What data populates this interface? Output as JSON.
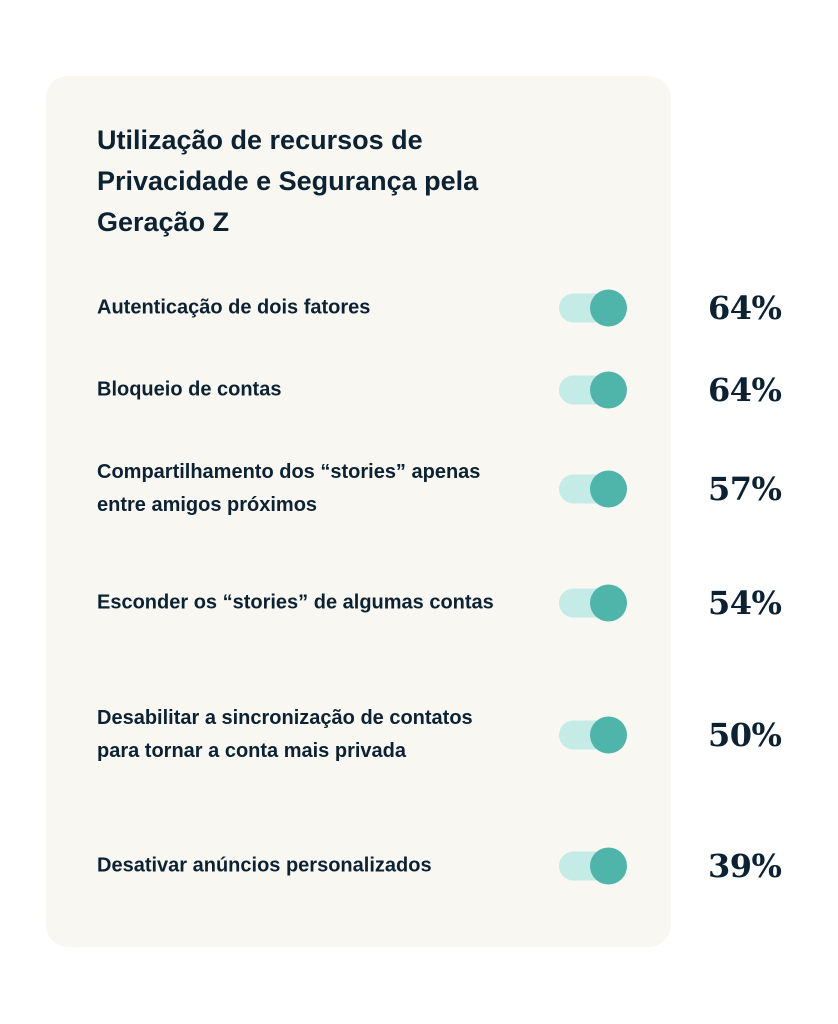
{
  "title": "Utilização de recursos de Privacidade e Segurança pela Geração Z",
  "colors": {
    "card": "#f8f7f2",
    "text": "#0c2233",
    "toggle_track": "#c4ebe6",
    "toggle_knob": "#4fb5aa"
  },
  "items": [
    {
      "label": "Autenticação de dois fatores",
      "percent": "64%",
      "value": 64,
      "toggle_on": true
    },
    {
      "label": "Bloqueio de contas",
      "percent": "64%",
      "value": 64,
      "toggle_on": true
    },
    {
      "label": "Compartilhamento dos “stories” apenas entre amigos próximos",
      "percent": "57%",
      "value": 57,
      "toggle_on": true
    },
    {
      "label": "Esconder os “stories” de algumas contas",
      "percent": "54%",
      "value": 54,
      "toggle_on": true
    },
    {
      "label": "Desabilitar a sincronização de contatos para tornar a conta mais privada",
      "percent": "50%",
      "value": 50,
      "toggle_on": true
    },
    {
      "label": "Desativar anúncios personalizados",
      "percent": "39%",
      "value": 39,
      "toggle_on": true
    }
  ]
}
